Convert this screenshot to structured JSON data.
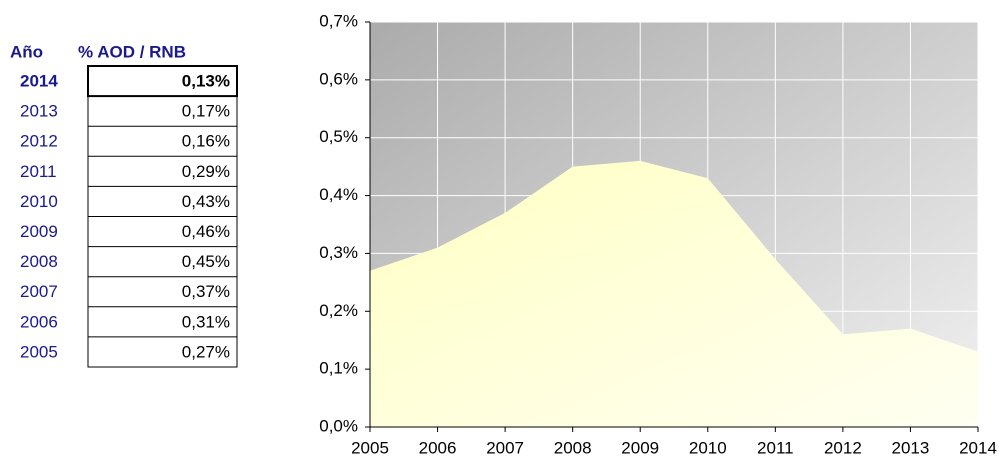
{
  "table": {
    "headers": [
      "Año",
      "% AOD / RNB"
    ],
    "rows": [
      [
        "2014",
        "0,13%"
      ],
      [
        "2013",
        "0,17%"
      ],
      [
        "2012",
        "0,16%"
      ],
      [
        "2011",
        "0,29%"
      ],
      [
        "2010",
        "0,43%"
      ],
      [
        "2009",
        "0,46%"
      ],
      [
        "2008",
        "0,45%"
      ],
      [
        "2007",
        "0,37%"
      ],
      [
        "2006",
        "0,31%"
      ],
      [
        "2005",
        "0,27%"
      ]
    ]
  },
  "chart_data": {
    "type": "area",
    "x": [
      2005,
      2006,
      2007,
      2008,
      2009,
      2010,
      2011,
      2012,
      2013,
      2014
    ],
    "values": [
      0.27,
      0.31,
      0.37,
      0.45,
      0.46,
      0.43,
      0.29,
      0.16,
      0.17,
      0.13
    ],
    "color": "#ffffd0",
    "xlim": [
      2005,
      2014
    ],
    "xticks": [
      2005,
      2006,
      2007,
      2008,
      2009,
      2010,
      2011,
      2012,
      2013,
      2014
    ],
    "ylim": [
      0,
      0.7
    ],
    "yticks": [
      {
        "value": 0,
        "label": "0,0%"
      },
      {
        "value": 0.1,
        "label": "0,1%"
      },
      {
        "value": 0.2,
        "label": "0,2%"
      },
      {
        "value": 0.3,
        "label": "0,3%"
      },
      {
        "value": 0.4,
        "label": "0,4%"
      },
      {
        "value": 0.5,
        "label": "0,5%"
      },
      {
        "value": 0.6,
        "label": "0,6%"
      },
      {
        "value": 0.7,
        "label": "0,7%"
      }
    ],
    "grid": true
  }
}
